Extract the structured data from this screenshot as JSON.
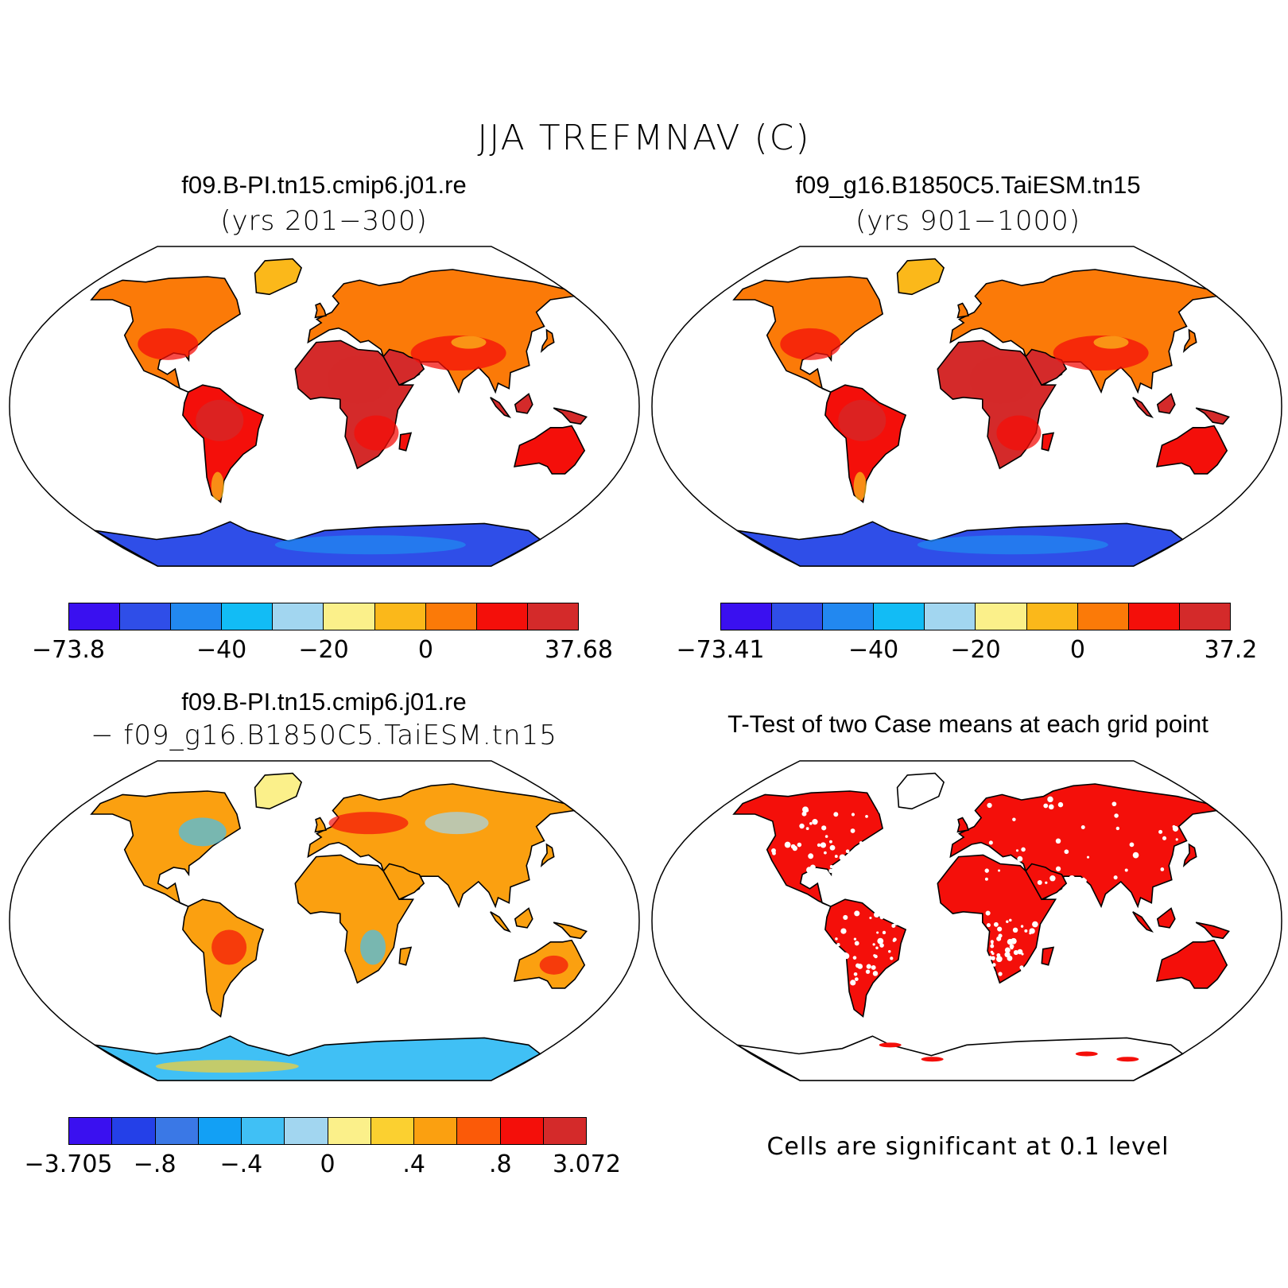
{
  "title": "JJA TREFMNAV (C)",
  "panels": {
    "top_left": {
      "title": "f09.B-PI.tn15.cmip6.j01.re",
      "subtitle": "(yrs 201−300)"
    },
    "top_right": {
      "title": "f09_g16.B1850C5.TaiESM.tn15",
      "subtitle": "(yrs 901−1000)"
    },
    "bottom_left": {
      "title": "f09.B-PI.tn15.cmip6.j01.re",
      "subtitle": "− f09_g16.B1850C5.TaiESM.tn15"
    },
    "bottom_right": {
      "title": "T-Test of two Case means at each grid point",
      "note": "Cells are significant at 0.1 level"
    }
  },
  "colorbars": {
    "top_left": {
      "colors": [
        "#3a10f0",
        "#2f4ee8",
        "#2288f0",
        "#12bcf5",
        "#a2d6f0",
        "#fbf08a",
        "#fbb81a",
        "#fb7a08",
        "#f40f0a",
        "#d42a2a"
      ],
      "labels": [
        "−73.8",
        "−40",
        "−20",
        "0",
        "37.68"
      ]
    },
    "top_right": {
      "colors": [
        "#3a10f0",
        "#2f4ee8",
        "#2288f0",
        "#12bcf5",
        "#a2d6f0",
        "#fbf08a",
        "#fbb81a",
        "#fb7a08",
        "#f40f0a",
        "#d42a2a"
      ],
      "labels": [
        "−73.41",
        "−40",
        "−20",
        "0",
        "37.2"
      ]
    },
    "bottom_left": {
      "colors": [
        "#3a10f0",
        "#2440e8",
        "#3a78e6",
        "#12a0f5",
        "#40c0f5",
        "#a2d6f0",
        "#fbf08a",
        "#fbd030",
        "#fba010",
        "#fb5a08",
        "#f40f0a",
        "#d42a2a"
      ],
      "labels": [
        "−3.705",
        "−.8",
        "−.4",
        "0",
        ".4",
        ".8",
        "3.072"
      ]
    }
  },
  "map_colors": {
    "ocean": "#ffffff",
    "land_warm": "#d42a2a",
    "land_mid": "#f40f0a",
    "land_orange": "#fb7a08",
    "land_yellow": "#fbb81a",
    "ice": "#2f4ee8",
    "ice_light": "#2288f0",
    "diff_land": "#fba010",
    "diff_ice": "#40c0f5",
    "significant": "#f40f0a"
  }
}
